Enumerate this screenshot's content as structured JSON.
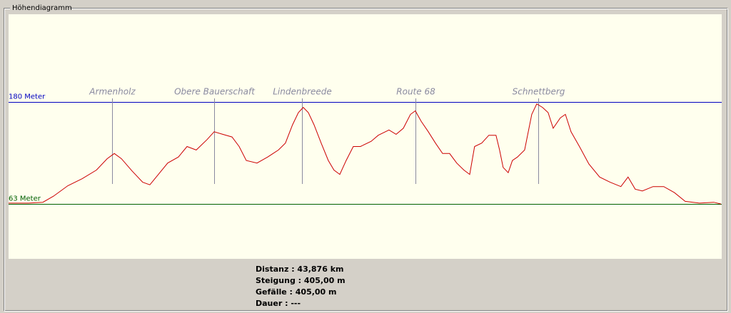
{
  "window": {
    "title": "Höhendiagramm"
  },
  "chart_data": {
    "type": "line",
    "x": [
      0,
      1.23,
      2.11,
      2.77,
      3.65,
      4.53,
      5.41,
      6.07,
      6.51,
      6.95,
      7.6,
      8.26,
      8.7,
      9.23,
      9.8,
      10.46,
      10.99,
      11.56,
      12.22,
      12.66,
      13.19,
      13.76,
      14.2,
      14.64,
      15.3,
      15.96,
      16.62,
      17.05,
      17.49,
      17.85,
      18.15,
      18.46,
      18.81,
      19.25,
      19.69,
      20.04,
      20.4,
      20.79,
      21.23,
      21.67,
      22.33,
      22.77,
      23.43,
      23.87,
      24.31,
      24.75,
      25.05,
      25.41,
      25.85,
      26.29,
      26.73,
      27.16,
      27.6,
      28.04,
      28.4,
      28.7,
      29.14,
      29.58,
      30.02,
      30.24,
      30.46,
      30.77,
      31.03,
      31.34,
      31.78,
      32.22,
      32.53,
      32.88,
      33.23,
      33.54,
      33.98,
      34.29,
      34.64,
      35.16,
      35.74,
      36.4,
      37.05,
      37.71,
      38.15,
      38.59,
      39.03,
      39.69,
      40.35,
      41.01,
      41.67,
      42.55,
      43.43,
      43.87
    ],
    "series": [
      {
        "color": "#cc0000",
        "values": [
          64,
          64,
          65,
          72,
          84,
          92,
          102,
          115,
          121,
          115,
          101,
          88,
          85,
          97,
          110,
          117,
          129,
          125,
          137,
          146,
          143,
          140,
          129,
          113,
          110,
          117,
          125,
          133,
          154,
          168,
          174,
          168,
          154,
          133,
          113,
          102,
          97,
          113,
          129,
          129,
          135,
          142,
          148,
          143,
          150,
          166,
          170,
          158,
          146,
          133,
          121,
          121,
          110,
          102,
          97,
          129,
          133,
          142,
          142,
          125,
          105,
          99,
          113,
          117,
          125,
          166,
          178,
          174,
          168,
          150,
          162,
          166,
          146,
          129,
          109,
          94,
          88,
          83,
          94,
          80,
          78,
          83,
          83,
          76,
          66,
          64,
          65,
          63
        ]
      }
    ],
    "xlim": [
      0,
      43.876
    ],
    "ylim": [
      0,
      281
    ],
    "yticks": [
      {
        "value": 63,
        "label": "63 Meter"
      },
      {
        "value": 180,
        "label": "180 Meter"
      }
    ],
    "ytick_colors": [
      "#006000",
      "#0000c0"
    ],
    "waypoints": [
      {
        "label": "Armenholz",
        "x": 6.37
      },
      {
        "label": "Obere Bauerschaft",
        "x": 12.66
      },
      {
        "label": "Lindenbreede",
        "x": 18.07
      },
      {
        "label": "Route 68",
        "x": 25.05
      },
      {
        "label": "Schnettberg",
        "x": 32.62
      }
    ]
  },
  "stats": [
    "Distanz : 43,876 km",
    "Steigung : 405,00 m",
    "Gefälle : 405,00 m",
    "Dauer : ---"
  ]
}
